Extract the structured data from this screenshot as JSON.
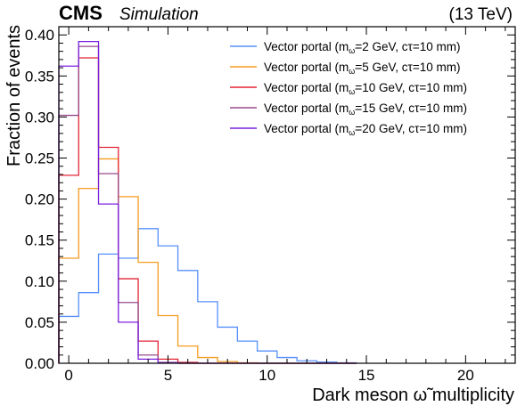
{
  "header": {
    "experiment": "CMS",
    "tag": "Simulation",
    "energy": "(13 TeV)"
  },
  "chart_data": {
    "type": "histogram",
    "xlabel": "Dark meson ω̃ multiplicity",
    "ylabel": "Fraction of events",
    "xlim": [
      -0.5,
      22.5
    ],
    "ylim": [
      0,
      0.41
    ],
    "xticks": [
      0,
      5,
      10,
      15,
      20
    ],
    "yticks": [
      0.0,
      0.05,
      0.1,
      0.15,
      0.2,
      0.25,
      0.3,
      0.35,
      0.4
    ],
    "ytick_labels": [
      "0.00",
      "0.05",
      "0.10",
      "0.15",
      "0.20",
      "0.25",
      "0.30",
      "0.35",
      "0.40"
    ],
    "bin_edges": [
      -0.5,
      0.5,
      1.5,
      2.5,
      3.5,
      4.5,
      5.5,
      6.5,
      7.5,
      8.5,
      9.5,
      10.5,
      11.5,
      12.5,
      13.5,
      14.5
    ],
    "grid": false,
    "legend_position": "top-right",
    "series": [
      {
        "label_prefix": "Vector portal (m",
        "label_sub": "ω̃",
        "label_suffix": "=2 GeV, cτ=10 mm)",
        "color": "#5790fc",
        "values": [
          0.057,
          0.086,
          0.133,
          0.128,
          0.164,
          0.143,
          0.113,
          0.075,
          0.044,
          0.027,
          0.015,
          0.007,
          0.003,
          0.0015,
          0.0005
        ]
      },
      {
        "label_prefix": "Vector portal (m",
        "label_sub": "ω̃",
        "label_suffix": "=5 GeV, cτ=10 mm)",
        "color": "#f89c20",
        "values": [
          0.128,
          0.213,
          0.249,
          0.203,
          0.123,
          0.058,
          0.021,
          0.007,
          0.002,
          0.0005,
          0,
          0,
          0,
          0,
          0
        ]
      },
      {
        "label_prefix": "Vector portal (m",
        "label_sub": "ω̃",
        "label_suffix": "=10 GeV, cτ=10 mm)",
        "color": "#e42536",
        "values": [
          0.229,
          0.372,
          0.263,
          0.103,
          0.027,
          0.005,
          0.001,
          0,
          0,
          0,
          0,
          0,
          0,
          0,
          0
        ]
      },
      {
        "label_prefix": "Vector portal (m",
        "label_sub": "ω̃",
        "label_suffix": "=15 GeV, cτ=10 mm)",
        "color": "#964a8b",
        "values": [
          0.302,
          0.386,
          0.231,
          0.074,
          0.01,
          0.001,
          0,
          0,
          0,
          0,
          0,
          0,
          0,
          0,
          0
        ]
      },
      {
        "label_prefix": "Vector portal (m",
        "label_sub": "ω̃",
        "label_suffix": "=20 GeV, cτ=10 mm)",
        "color": "#7a21dd",
        "values": [
          0.362,
          0.392,
          0.194,
          0.05,
          0.005,
          0.0005,
          0,
          0,
          0,
          0,
          0,
          0,
          0,
          0,
          0
        ]
      }
    ]
  }
}
